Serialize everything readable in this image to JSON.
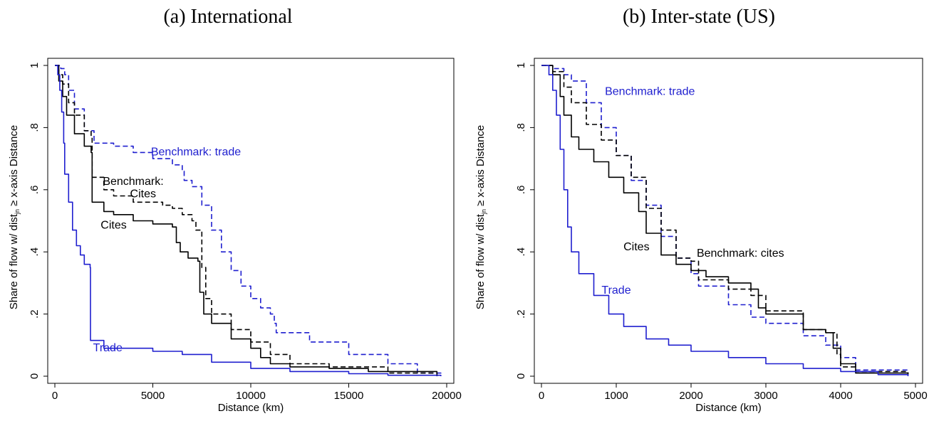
{
  "chart_data": [
    {
      "type": "line",
      "title": "(a) International",
      "xlabel": "Distance (km)",
      "ylabel_pre": "Share of flow w/ dist",
      "ylabel_sub": "jn",
      "ylabel_post": " ≥ x-axis Distance",
      "xlim": [
        0,
        20000
      ],
      "ylim": [
        0,
        1
      ],
      "xticks": [
        "0",
        "5000",
        "10000",
        "15000",
        "20000"
      ],
      "xtick_values": [
        0,
        5000,
        10000,
        15000,
        20000
      ],
      "yticks": [
        "0",
        ".2",
        ".4",
        ".6",
        ".8",
        "1"
      ],
      "ytick_values": [
        0,
        0.2,
        0.4,
        0.6,
        0.8,
        1
      ],
      "grid": false,
      "series": [
        {
          "name": "Benchmark: trade",
          "color": "#1f1fcf",
          "dash": true,
          "x": [
            0,
            300,
            500,
            700,
            1000,
            1500,
            2000,
            3000,
            4000,
            5000,
            6000,
            6500,
            6600,
            7000,
            7500,
            8000,
            8500,
            9000,
            9500,
            10000,
            10500,
            11000,
            11200,
            11300,
            13000,
            15000,
            17000,
            18500,
            19700
          ],
          "y": [
            1,
            0.99,
            0.97,
            0.92,
            0.86,
            0.79,
            0.75,
            0.74,
            0.72,
            0.7,
            0.68,
            0.66,
            0.63,
            0.61,
            0.55,
            0.47,
            0.4,
            0.34,
            0.29,
            0.25,
            0.22,
            0.2,
            0.17,
            0.14,
            0.11,
            0.07,
            0.04,
            0.01,
            0
          ]
        },
        {
          "name": "Benchmark: Cites",
          "color": "#000000",
          "dash": true,
          "x": [
            0,
            200,
            400,
            700,
            1000,
            1500,
            1850,
            1900,
            2500,
            3000,
            4000,
            5000,
            5500,
            6000,
            6500,
            7000,
            7200,
            7500,
            7700,
            8000,
            9000,
            10000,
            11000,
            12000,
            14000,
            17000,
            19500
          ],
          "y": [
            1,
            0.97,
            0.94,
            0.88,
            0.84,
            0.79,
            0.77,
            0.64,
            0.6,
            0.58,
            0.56,
            0.56,
            0.55,
            0.54,
            0.52,
            0.5,
            0.47,
            0.35,
            0.25,
            0.2,
            0.15,
            0.11,
            0.07,
            0.04,
            0.03,
            0.01,
            0
          ]
        },
        {
          "name": "Cites",
          "color": "#000000",
          "dash": false,
          "x": [
            0,
            200,
            400,
            600,
            1000,
            1500,
            1850,
            1900,
            2500,
            3000,
            4000,
            5000,
            6000,
            6200,
            6400,
            6800,
            7300,
            7400,
            7600,
            8000,
            9000,
            10000,
            10500,
            11000,
            12000,
            14000,
            16000,
            19500
          ],
          "y": [
            1,
            0.95,
            0.9,
            0.84,
            0.78,
            0.74,
            0.72,
            0.56,
            0.53,
            0.52,
            0.5,
            0.49,
            0.48,
            0.43,
            0.4,
            0.38,
            0.37,
            0.27,
            0.2,
            0.17,
            0.12,
            0.09,
            0.06,
            0.04,
            0.03,
            0.025,
            0.015,
            0
          ]
        },
        {
          "name": "Trade",
          "color": "#1f1fcf",
          "dash": false,
          "x": [
            0,
            150,
            250,
            350,
            450,
            500,
            700,
            900,
            1100,
            1300,
            1500,
            1800,
            1820,
            2500,
            5000,
            6500,
            8000,
            10000,
            12000,
            15000,
            17000,
            19700
          ],
          "y": [
            1,
            0.97,
            0.92,
            0.85,
            0.75,
            0.65,
            0.56,
            0.47,
            0.42,
            0.39,
            0.36,
            0.35,
            0.115,
            0.09,
            0.08,
            0.07,
            0.045,
            0.025,
            0.015,
            0.008,
            0.003,
            0
          ]
        }
      ],
      "annotations": [
        {
          "text": "Benchmark: trade",
          "x": 7200,
          "y": 0.71,
          "color": "#1f1fcf"
        },
        {
          "text": "Benchmark:",
          "x": 4000,
          "y": 0.615,
          "color": "#000000"
        },
        {
          "text": "Cites",
          "x": 4500,
          "y": 0.575,
          "color": "#000000"
        },
        {
          "text": "Cites",
          "x": 3000,
          "y": 0.475,
          "color": "#000000"
        },
        {
          "text": "Trade",
          "x": 2700,
          "y": 0.08,
          "color": "#1f1fcf"
        }
      ]
    },
    {
      "type": "line",
      "title": "(b) Inter-state (US)",
      "xlabel": "Distance (km)",
      "ylabel_pre": "Share of flow w/ dist",
      "ylabel_sub": "jn",
      "ylabel_post": " ≥ x-axis Distance",
      "xlim": [
        0,
        5000
      ],
      "ylim": [
        0,
        1
      ],
      "xticks": [
        "0",
        "1000",
        "2000",
        "3000",
        "4000",
        "5000"
      ],
      "xtick_values": [
        0,
        1000,
        2000,
        3000,
        4000,
        5000
      ],
      "yticks": [
        "0",
        ".2",
        ".4",
        ".6",
        ".8",
        "1"
      ],
      "ytick_values": [
        0,
        0.2,
        0.4,
        0.6,
        0.8,
        1
      ],
      "grid": false,
      "series": [
        {
          "name": "Benchmark: trade",
          "color": "#1f1fcf",
          "dash": true,
          "x": [
            0,
            150,
            300,
            400,
            600,
            800,
            1000,
            1200,
            1400,
            1600,
            1800,
            2000,
            2100,
            2500,
            2800,
            3000,
            3500,
            3800,
            4000,
            4200,
            4900
          ],
          "y": [
            1,
            0.99,
            0.97,
            0.95,
            0.88,
            0.8,
            0.71,
            0.63,
            0.55,
            0.45,
            0.38,
            0.33,
            0.29,
            0.23,
            0.19,
            0.17,
            0.13,
            0.1,
            0.06,
            0.02,
            0.01
          ]
        },
        {
          "name": "Benchmark: cites",
          "color": "#000000",
          "dash": true,
          "x": [
            0,
            150,
            300,
            400,
            600,
            800,
            1000,
            1200,
            1400,
            1600,
            1800,
            2000,
            2100,
            2500,
            2800,
            3000,
            3500,
            3800,
            3950,
            4000,
            4200,
            4900
          ],
          "y": [
            1,
            0.98,
            0.93,
            0.88,
            0.81,
            0.76,
            0.71,
            0.64,
            0.54,
            0.47,
            0.38,
            0.37,
            0.31,
            0.28,
            0.26,
            0.21,
            0.15,
            0.14,
            0.07,
            0.03,
            0.015,
            0.005
          ]
        },
        {
          "name": "Cites",
          "color": "#000000",
          "dash": false,
          "x": [
            0,
            150,
            250,
            300,
            400,
            500,
            700,
            900,
            1100,
            1300,
            1400,
            1600,
            1800,
            2000,
            2200,
            2500,
            2800,
            2900,
            3000,
            3500,
            3800,
            3900,
            4000,
            4200,
            4900
          ],
          "y": [
            1,
            0.97,
            0.9,
            0.84,
            0.77,
            0.73,
            0.69,
            0.64,
            0.59,
            0.53,
            0.46,
            0.39,
            0.36,
            0.34,
            0.32,
            0.3,
            0.28,
            0.22,
            0.2,
            0.15,
            0.14,
            0.09,
            0.04,
            0.01,
            0.005
          ]
        },
        {
          "name": "Trade",
          "color": "#1f1fcf",
          "dash": false,
          "x": [
            0,
            100,
            150,
            200,
            250,
            300,
            350,
            400,
            500,
            700,
            900,
            1100,
            1400,
            1700,
            2000,
            2500,
            3000,
            3500,
            4000,
            4500,
            4900
          ],
          "y": [
            1,
            0.97,
            0.92,
            0.84,
            0.73,
            0.6,
            0.48,
            0.4,
            0.33,
            0.26,
            0.2,
            0.16,
            0.12,
            0.1,
            0.08,
            0.06,
            0.04,
            0.025,
            0.015,
            0.005,
            0
          ]
        }
      ],
      "annotations": [
        {
          "text": "Benchmark: trade",
          "x": 1450,
          "y": 0.905,
          "color": "#1f1fcf"
        },
        {
          "text": "Cites",
          "x": 1270,
          "y": 0.405,
          "color": "#000000"
        },
        {
          "text": "Benchmark: cites",
          "x": 2660,
          "y": 0.385,
          "color": "#000000"
        },
        {
          "text": "Trade",
          "x": 1000,
          "y": 0.265,
          "color": "#1f1fcf"
        }
      ]
    }
  ]
}
